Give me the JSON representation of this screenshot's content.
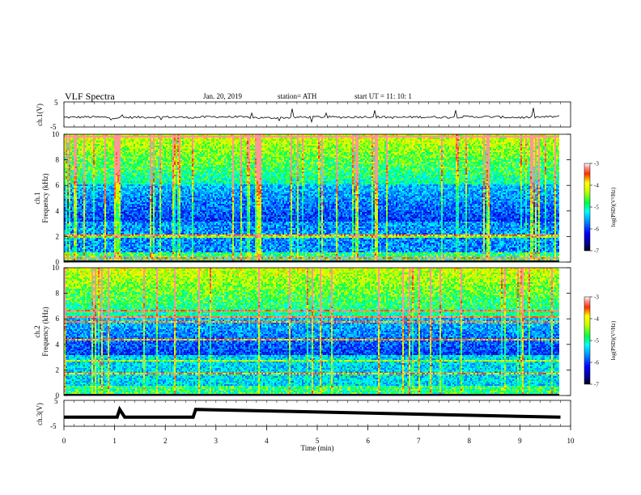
{
  "header": {
    "title": "VLF  Spectra",
    "date": "Jan. 20, 2019",
    "station": "station= ATH",
    "start": "start  UT  =    11: 10: 1"
  },
  "chart_data": [
    {
      "type": "line",
      "panel": "ch1",
      "ylabel": "ch.1(V)",
      "ylim": [
        -5,
        5
      ],
      "yticks": [
        "5",
        "-5"
      ],
      "xlim": [
        0,
        10
      ],
      "description_values": "Waveform centered near -1 V with spikes up to about +4 V and down to -5 V",
      "x": [
        0,
        0.5,
        1,
        1.5,
        2,
        2.5,
        3,
        3.5,
        4,
        4.5,
        5,
        5.5,
        6,
        6.5,
        7,
        7.5,
        8,
        8.5,
        9,
        9.5,
        9.8
      ],
      "y": [
        -1.2,
        -1.0,
        -1.3,
        -1.1,
        -1.0,
        -1.2,
        -0.9,
        -1.1,
        -1.4,
        -1.2,
        -1.0,
        -1.1,
        -0.9,
        -1.2,
        -1.0,
        -1.1,
        -0.9,
        -1.0,
        -1.2,
        -1.0,
        -0.8
      ]
    },
    {
      "type": "heatmap",
      "panel": "ch1-spectrogram",
      "ylabel_channel": "ch.1",
      "ylabel": "Frequency  (kHz)",
      "ylim": [
        0,
        10
      ],
      "yticks": [
        "0",
        "2",
        "4",
        "6",
        "8",
        "10"
      ],
      "xlim": [
        0,
        10
      ],
      "colorbar_label": "log(PSD)(V²/Hz)",
      "colorbar_ticks": [
        "-3",
        "-4",
        "-5",
        "-6",
        "-7"
      ],
      "colorbar_range": [
        -7,
        -3
      ]
    },
    {
      "type": "heatmap",
      "panel": "ch2-spectrogram",
      "ylabel_channel": "ch.2",
      "ylabel": "Frequency  (kHz)",
      "ylim": [
        0,
        10
      ],
      "yticks": [
        "0",
        "2",
        "4",
        "6",
        "8",
        "10"
      ],
      "xlim": [
        0,
        10
      ],
      "colorbar_label": "log(PSD)(V²/Hz)",
      "colorbar_ticks": [
        "-3",
        "-4",
        "-5",
        "-6",
        "-7"
      ],
      "colorbar_range": [
        -7,
        -3
      ]
    },
    {
      "type": "line",
      "panel": "ch3",
      "ylabel": "ch.3(V)",
      "ylim": [
        -5,
        5
      ],
      "yticks": [
        "5",
        "-5"
      ],
      "xlim": [
        0,
        10
      ],
      "x": [
        0,
        1.05,
        1.1,
        1.2,
        1.25,
        2.55,
        2.6,
        9.8
      ],
      "y": [
        -1.5,
        -1.5,
        1.5,
        -1.5,
        -1.5,
        -1.5,
        1.5,
        -1.5
      ],
      "xlabel": "Time  (min)",
      "xticks": [
        "0",
        "1",
        "2",
        "3",
        "4",
        "5",
        "6",
        "7",
        "8",
        "9",
        "10"
      ]
    }
  ]
}
